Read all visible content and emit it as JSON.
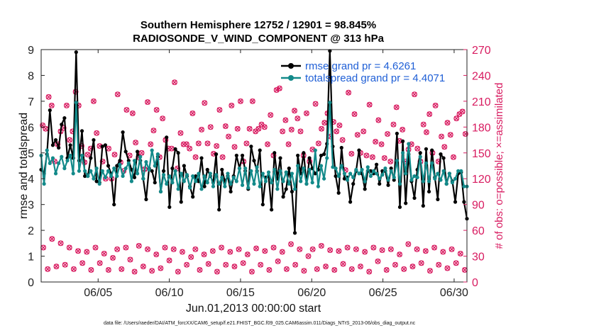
{
  "chart_data": {
    "type": "line",
    "title_line1": "Southern Hemisphere 12752 / 12901 = 98.845%",
    "title_line2": "RADIOSONDE_V_WIND_COMPONENT @ 313 hPa",
    "xlabel": "Jun.01,2013 00:00:00 start",
    "ylabel": "rmse and totalspread",
    "ylabel_right": "# of obs: o=possible; ×=assimilated",
    "footnote": "data file: /Users/raeder/DAI/ATM_forcXX/CAM6_setup/f.e21.FHIST_BGC.f09_025.CAM6assim.011/Diags_NTrS_2013-06/obs_diag_output.nc",
    "xlim": [
      1,
      30.9
    ],
    "ylim": [
      0,
      9
    ],
    "ylim_right": [
      0,
      270
    ],
    "x_ticks": [
      5,
      10,
      15,
      20,
      25,
      30
    ],
    "x_tick_labels": [
      "06/05",
      "06/10",
      "06/15",
      "06/20",
      "06/25",
      "06/30"
    ],
    "y_ticks": [
      0,
      1,
      2,
      3,
      4,
      5,
      6,
      7,
      8,
      9
    ],
    "y_tick_labels": [
      "0",
      "1",
      "2",
      "3",
      "4",
      "5",
      "6",
      "7",
      "8",
      "9"
    ],
    "y_right_ticks": [
      0,
      30,
      60,
      90,
      120,
      150,
      180,
      210,
      240,
      270
    ],
    "y_right_tick_labels": [
      "0",
      "30",
      "60",
      "90",
      "120",
      "150",
      "180",
      "210",
      "240",
      "270"
    ],
    "colors": {
      "rmse": "#000000",
      "spread": "#138a8a",
      "obs": "#d81b60",
      "legend_text": "#1f5fd6"
    },
    "series": [
      {
        "name": "rmse grand pr = 4.6261",
        "values": [
          4.35,
          4.2,
          4.95,
          6.65,
          5.3,
          5.5,
          5.2,
          6.1,
          6.35,
          4.8,
          5.3,
          4.8,
          8.9,
          4.7,
          5.85,
          4.1,
          4.1,
          4.8,
          5.5,
          3.9,
          3.85,
          5.25,
          5.3,
          4.5,
          4.2,
          3.0,
          4.5,
          4.7,
          5.8,
          5.05,
          4.7,
          4.35,
          4.05,
          5.05,
          4.7,
          4.0,
          3.2,
          4.4,
          4.3,
          3.85,
          4.85,
          3.5,
          4.3,
          5.6,
          2.9,
          4.4,
          5.15,
          5.0,
          3.1,
          4.5,
          4.1,
          3.7,
          3.3,
          4.1,
          3.9,
          4.8,
          3.7,
          4.35,
          4.1,
          3.85,
          4.95,
          2.8,
          4.35,
          3.9,
          4.1,
          3.5,
          4.1,
          4.9,
          4.4,
          4.9,
          4.3,
          3.6,
          5.25,
          4.7,
          4.3,
          5.1,
          3.0,
          4.05,
          4.1,
          2.8,
          5.0,
          4.0,
          4.8,
          3.3,
          3.6,
          4.4,
          3.5,
          1.9,
          4.9,
          4.2,
          5.0,
          3.8,
          4.8,
          4.4,
          4.2,
          4.35,
          4.9,
          4.95,
          5.35,
          8.95,
          5.25,
          4.1,
          3.45,
          5.2,
          4.0,
          4.05,
          3.1,
          3.8,
          4.3,
          5.1,
          4.2,
          3.6,
          4.3,
          4.3,
          4.2,
          4.55,
          3.8,
          4.3,
          4.3,
          3.75,
          4.4,
          3.95,
          5.75,
          2.9,
          5.45,
          3.05,
          4.95,
          3.9,
          3.25,
          4.35,
          5.0,
          2.95,
          5.15,
          3.5,
          5.1,
          4.05,
          3.2,
          4.95,
          4.8,
          3.8,
          4.2,
          3.9,
          3.1,
          4.2,
          4.25,
          3.1,
          2.45
        ],
        "marker": "dot"
      },
      {
        "name": "totalspread grand pr = 4.4071",
        "values": [
          4.9,
          3.8,
          5.1,
          4.6,
          4.8,
          4.2,
          4.6,
          4.85,
          4.4,
          4.7,
          4.9,
          4.2,
          6.95,
          4.3,
          4.9,
          4.3,
          4.1,
          4.3,
          4.0,
          4.4,
          3.8,
          4.3,
          4.05,
          4.3,
          4.1,
          4.4,
          4.1,
          4.55,
          4.1,
          4.4,
          4.6,
          3.9,
          4.7,
          4.2,
          4.85,
          4.0,
          4.65,
          4.35,
          5.1,
          4.5,
          4.95,
          3.5,
          4.15,
          3.8,
          4.1,
          3.85,
          4.3,
          3.6,
          4.2,
          3.9,
          4.15,
          3.65,
          4.1,
          3.9,
          4.2,
          3.6,
          4.1,
          3.85,
          4.2,
          3.7,
          4.15,
          3.8,
          4.05,
          3.7,
          4.2,
          3.8,
          4.05,
          3.9,
          4.4,
          3.75,
          4.4,
          3.65,
          4.3,
          3.8,
          4.45,
          3.7,
          4.2,
          3.9,
          4.25,
          3.85,
          4.35,
          3.6,
          4.3,
          3.9,
          4.25,
          3.8,
          4.2,
          3.6,
          4.5,
          3.9,
          4.4,
          3.8,
          4.35,
          3.85,
          5.1,
          3.7,
          4.5,
          4.0,
          4.8,
          6.95,
          4.45,
          4.4,
          4.1,
          4.5,
          4.2,
          3.95,
          4.2,
          4.05,
          4.35,
          4.2,
          4.35,
          3.9,
          4.45,
          4.1,
          4.3,
          4.2,
          4.0,
          4.15,
          4.4,
          3.95,
          4.3,
          4.05,
          4.7,
          3.8,
          5.0,
          4.2,
          5.35,
          3.95,
          4.1,
          4.05,
          4.85,
          3.9,
          4.6,
          3.9,
          4.6,
          4.0,
          4.2,
          3.95,
          4.3,
          3.8,
          4.2,
          3.85,
          4.0,
          4.3,
          4.3,
          3.7,
          3.7
        ]
      }
    ],
    "obs_possible_high": [
      182,
      178,
      215,
      205,
      140,
      160,
      175,
      179,
      205,
      165,
      175,
      221,
      205,
      158,
      139,
      148,
      155,
      210,
      173,
      158,
      140,
      120,
      155,
      120,
      148,
      218,
      139,
      129,
      200,
      147,
      196,
      162,
      145,
      150,
      131,
      209,
      160,
      176,
      200,
      145,
      190,
      165,
      155,
      155,
      232,
      132,
      173,
      160,
      160,
      155,
      196,
      145,
      161,
      177,
      208,
      161,
      180,
      149,
      158,
      200,
      145,
      181,
      169,
      205,
      157,
      178,
      210,
      140,
      161,
      178,
      210,
      175,
      178,
      183,
      180,
      160,
      194,
      147,
      223,
      225,
      175,
      188,
      160,
      177,
      199,
      190,
      175,
      147,
      196,
      140,
      154,
      207,
      161,
      178,
      185,
      196,
      169,
      186,
      175,
      182,
      165,
      130,
      220,
      149,
      195,
      171,
      150,
      175,
      147,
      206,
      145,
      163,
      188,
      160,
      144,
      172,
      140,
      183,
      203,
      164,
      177,
      140,
      154,
      160,
      218,
      155,
      140,
      183,
      174,
      195,
      150,
      205,
      140,
      169,
      157,
      185,
      171,
      145,
      190,
      195,
      198,
      172
    ],
    "obs_possible_low": [
      40,
      15,
      50,
      18,
      45,
      20,
      40,
      15,
      36,
      22,
      35,
      14,
      40,
      22,
      33,
      14,
      28,
      38,
      15,
      40,
      26,
      12,
      42,
      18,
      38,
      13,
      32,
      16,
      40,
      25,
      38,
      12,
      35,
      20,
      29,
      38,
      14,
      32,
      21,
      36,
      12,
      40,
      20,
      35,
      18,
      38,
      22,
      32,
      12,
      39,
      20,
      36,
      14,
      40,
      24,
      35,
      15,
      44,
      20,
      38,
      13,
      30,
      38,
      15,
      42,
      18,
      37,
      14,
      36,
      21,
      40,
      15,
      38,
      18,
      35,
      12,
      40,
      24,
      37,
      14,
      38,
      20,
      32,
      15,
      44,
      18,
      38,
      22,
      36,
      13,
      40,
      20,
      35,
      16,
      38,
      22,
      33,
      14
    ]
  }
}
